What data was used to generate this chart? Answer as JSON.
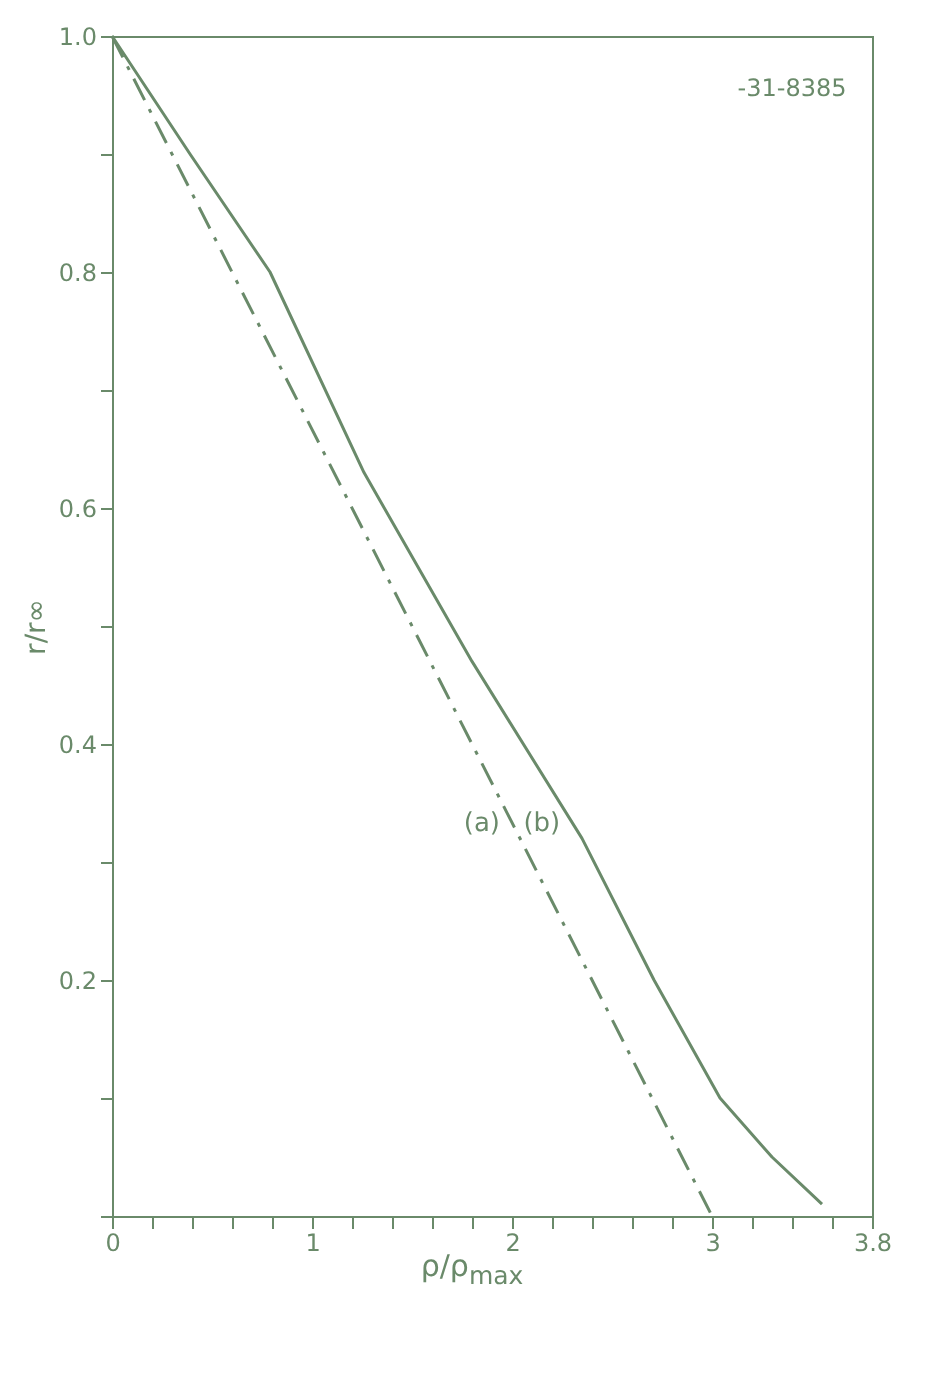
{
  "chart_data": {
    "type": "line",
    "xlabel": "ρ/ρ$_{max}$",
    "ylabel": "r/r∞",
    "xlim": [
      0,
      3.8
    ],
    "ylim": [
      0,
      1.0
    ],
    "xticks": [
      0,
      {
        "value": 0.2,
        "label": null
      },
      {
        "value": 0.4,
        "label": null
      },
      {
        "value": 0.6,
        "label": null
      },
      {
        "value": 0.8,
        "label": null
      },
      1,
      {
        "value": 1.2,
        "label": null
      },
      {
        "value": 1.4,
        "label": null
      },
      {
        "value": 1.6,
        "label": null
      },
      {
        "value": 1.8,
        "label": null
      },
      2,
      {
        "value": 2.2,
        "label": null
      },
      {
        "value": 2.4,
        "label": null
      },
      {
        "value": 2.6,
        "label": null
      },
      {
        "value": 2.8,
        "label": null
      },
      3,
      {
        "value": 3.2,
        "label": null
      },
      {
        "value": 3.4,
        "label": null
      },
      {
        "value": 3.6,
        "label": null
      },
      {
        "value": 3.8,
        "label": "3.8"
      }
    ],
    "yticks": [
      {
        "value": 0,
        "label": null
      },
      {
        "value": 0.1,
        "label": null
      },
      {
        "value": 0.2,
        "label": "0.2"
      },
      {
        "value": 0.3,
        "label": null
      },
      {
        "value": 0.4,
        "label": "0.4"
      },
      {
        "value": 0.5,
        "label": null
      },
      {
        "value": 0.6,
        "label": "0.6"
      },
      {
        "value": 0.7,
        "label": null
      },
      {
        "value": 0.8,
        "label": "0.8"
      },
      {
        "value": 0.9,
        "label": null
      },
      {
        "value": 1.0,
        "label": "1.0"
      }
    ],
    "grid": false,
    "marker": "none",
    "series": [
      {
        "name": "(a)",
        "color": "#6a8a6a",
        "line_style": "dashed",
        "x": [
          0,
          3
        ],
        "values": [
          1,
          0
        ]
      },
      {
        "name": "(b)",
        "color": "#6a8a6a",
        "line_style": "solid",
        "x": [
          0,
          0.39,
          0.79,
          1.26,
          1.8,
          2.35,
          2.71,
          3.04,
          3.3,
          3.55
        ],
        "values": [
          1,
          0.9,
          0.8,
          0.63,
          0.47,
          0.32,
          0.2,
          0.1,
          0.05,
          0.01
        ]
      }
    ],
    "annotations": [
      "-31-8385"
    ]
  }
}
